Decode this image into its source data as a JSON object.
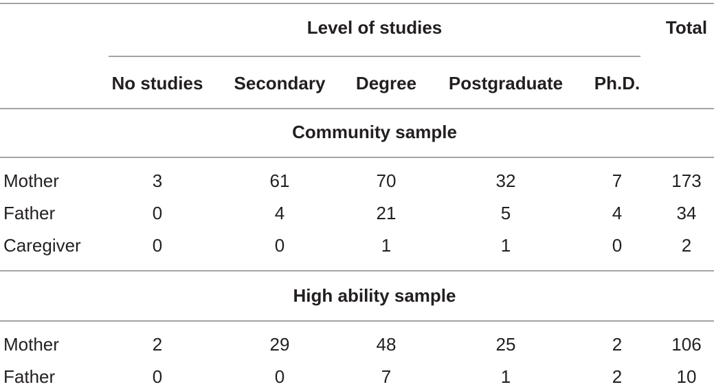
{
  "table": {
    "header": {
      "group": "Level of studies",
      "total": "Total",
      "columns": [
        "No studies",
        "Secondary",
        "Degree",
        "Postgraduate",
        "Ph.D."
      ]
    },
    "sections": [
      {
        "title": "Community sample",
        "rows": [
          {
            "label": "Mother",
            "values": [
              3,
              61,
              70,
              32,
              7
            ],
            "total": 173
          },
          {
            "label": "Father",
            "values": [
              0,
              4,
              21,
              5,
              4
            ],
            "total": 34
          },
          {
            "label": "Caregiver",
            "values": [
              0,
              0,
              1,
              1,
              0
            ],
            "total": 2
          }
        ]
      },
      {
        "title": "High ability sample",
        "rows": [
          {
            "label": "Mother",
            "values": [
              2,
              29,
              48,
              25,
              2
            ],
            "total": 106
          },
          {
            "label": "Father",
            "values": [
              0,
              0,
              7,
              1,
              2
            ],
            "total": 10
          }
        ]
      }
    ]
  }
}
